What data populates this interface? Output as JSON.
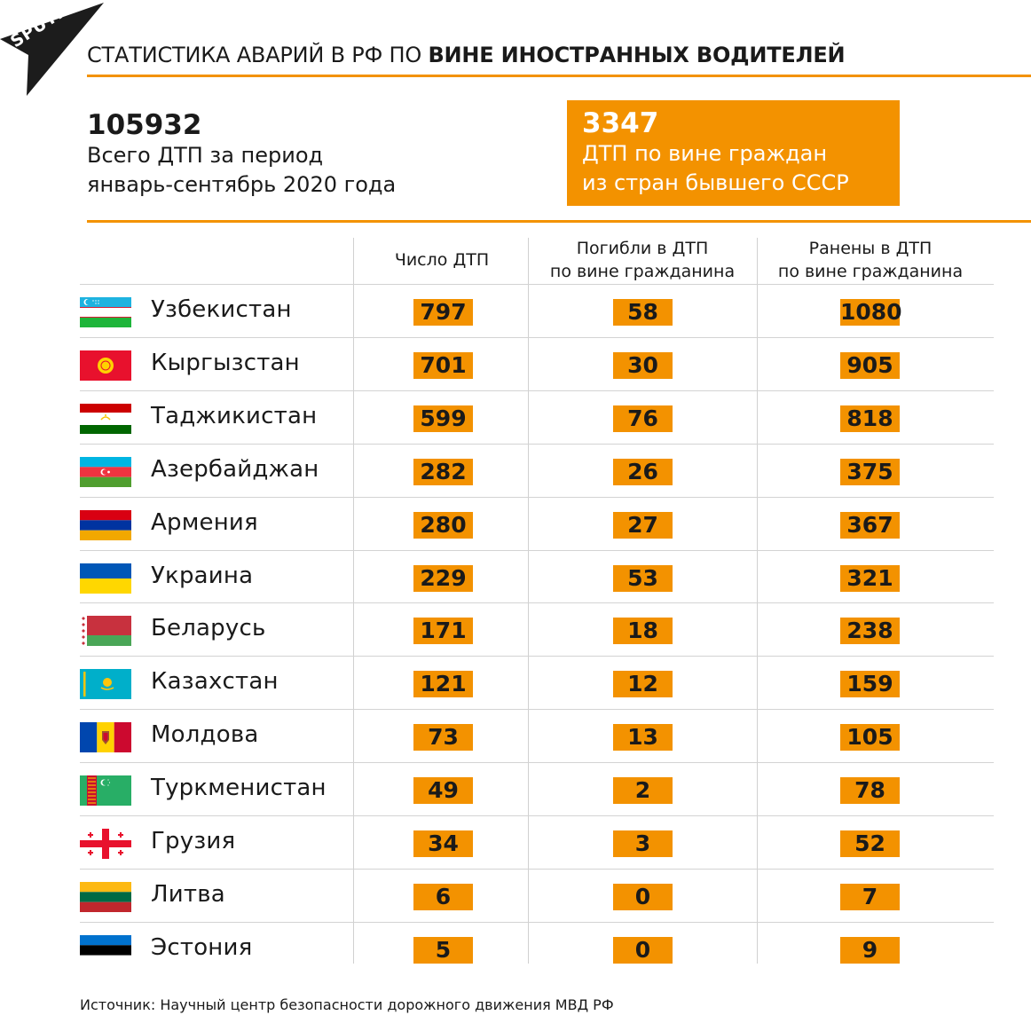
{
  "brand": {
    "logo_text": "SPUTNIK"
  },
  "header": {
    "title_regular": "СТАТИСТИКА АВАРИЙ В РФ ПО ",
    "title_bold": "ВИНЕ ИНОСТРАННЫХ ВОДИТЕЛЕЙ"
  },
  "summary": {
    "total_value": "105932",
    "total_line1": "Всего ДТП за период",
    "total_line2": "январь-сентябрь 2020 года",
    "highlight_value": "3347",
    "highlight_line1": "ДТП по вине граждан",
    "highlight_line2": "из стран бывшего СССР"
  },
  "colors": {
    "accent": "#f39200",
    "text": "#1a1a1a"
  },
  "chart_data": {
    "type": "table",
    "columns": [
      {
        "line1": "Число ДТП",
        "line2": ""
      },
      {
        "line1": "Погибли в ДТП",
        "line2": "по вине гражданина"
      },
      {
        "line1": "Ранены в ДТП",
        "line2": "по вине гражданина"
      }
    ],
    "rows": [
      {
        "country": "Узбекистан",
        "flag": "uzbekistan-flag-icon",
        "accidents": 797,
        "killed": 58,
        "injured": 1080
      },
      {
        "country": "Кыргызстан",
        "flag": "kyrgyzstan-flag-icon",
        "accidents": 701,
        "killed": 30,
        "injured": 905
      },
      {
        "country": "Таджикистан",
        "flag": "tajikistan-flag-icon",
        "accidents": 599,
        "killed": 76,
        "injured": 818
      },
      {
        "country": "Азербайджан",
        "flag": "azerbaijan-flag-icon",
        "accidents": 282,
        "killed": 26,
        "injured": 375
      },
      {
        "country": "Армения",
        "flag": "armenia-flag-icon",
        "accidents": 280,
        "killed": 27,
        "injured": 367
      },
      {
        "country": "Украина",
        "flag": "ukraine-flag-icon",
        "accidents": 229,
        "killed": 53,
        "injured": 321
      },
      {
        "country": "Беларусь",
        "flag": "belarus-flag-icon",
        "accidents": 171,
        "killed": 18,
        "injured": 238
      },
      {
        "country": "Казахстан",
        "flag": "kazakhstan-flag-icon",
        "accidents": 121,
        "killed": 12,
        "injured": 159
      },
      {
        "country": "Молдова",
        "flag": "moldova-flag-icon",
        "accidents": 73,
        "killed": 13,
        "injured": 105
      },
      {
        "country": "Туркменистан",
        "flag": "turkmenistan-flag-icon",
        "accidents": 49,
        "killed": 2,
        "injured": 78
      },
      {
        "country": "Грузия",
        "flag": "georgia-flag-icon",
        "accidents": 34,
        "killed": 3,
        "injured": 52
      },
      {
        "country": "Литва",
        "flag": "lithuania-flag-icon",
        "accidents": 6,
        "killed": 0,
        "injured": 7
      },
      {
        "country": "Эстония",
        "flag": "estonia-flag-icon",
        "accidents": 5,
        "killed": 0,
        "injured": 9
      }
    ]
  },
  "footer": {
    "source": "Источник: Научный центр безопасности дорожного движения МВД РФ"
  }
}
